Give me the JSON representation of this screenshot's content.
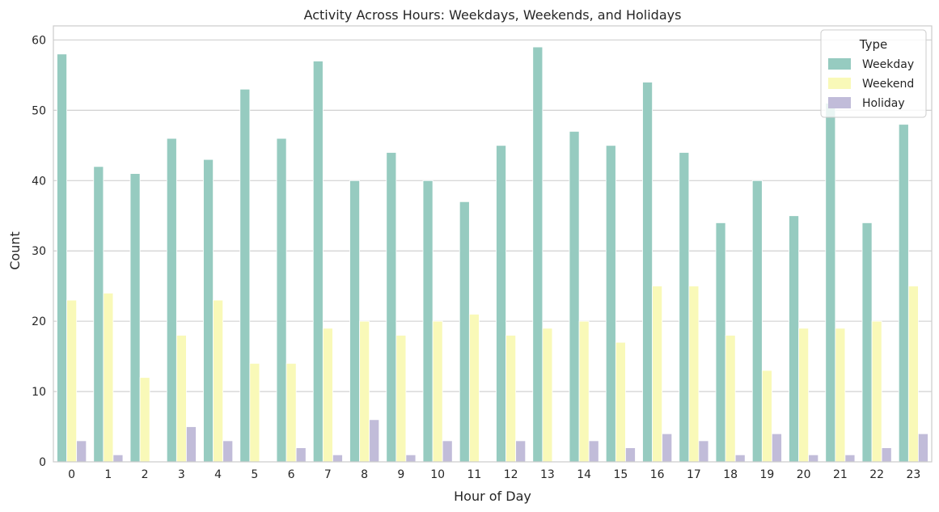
{
  "chart_data": {
    "type": "bar",
    "title": "Activity Across Hours: Weekdays, Weekends, and Holidays",
    "xlabel": "Hour of Day",
    "ylabel": "Count",
    "ylim": [
      0,
      62
    ],
    "yticks": [
      0,
      10,
      20,
      30,
      40,
      50,
      60
    ],
    "grid": "horizontal",
    "legend_title": "Type",
    "legend_position": "top-right",
    "categories": [
      "0",
      "1",
      "2",
      "3",
      "4",
      "5",
      "6",
      "7",
      "8",
      "9",
      "10",
      "11",
      "12",
      "13",
      "14",
      "15",
      "16",
      "17",
      "18",
      "19",
      "20",
      "21",
      "22",
      "23"
    ],
    "series": [
      {
        "name": "Weekday",
        "color": "#96cbc0",
        "values": [
          58,
          42,
          41,
          46,
          43,
          53,
          46,
          57,
          40,
          44,
          40,
          37,
          45,
          59,
          47,
          45,
          54,
          44,
          34,
          40,
          35,
          51,
          34,
          48
        ]
      },
      {
        "name": "Weekend",
        "color": "#f9f9b8",
        "values": [
          23,
          24,
          12,
          18,
          23,
          14,
          14,
          19,
          20,
          18,
          20,
          21,
          18,
          19,
          20,
          17,
          25,
          25,
          18,
          13,
          19,
          19,
          20,
          25
        ]
      },
      {
        "name": "Holiday",
        "color": "#c1bcd9",
        "values": [
          3,
          1,
          0,
          5,
          3,
          0,
          2,
          1,
          6,
          1,
          3,
          0,
          3,
          0,
          3,
          2,
          4,
          3,
          1,
          4,
          1,
          1,
          2,
          4
        ]
      }
    ]
  }
}
